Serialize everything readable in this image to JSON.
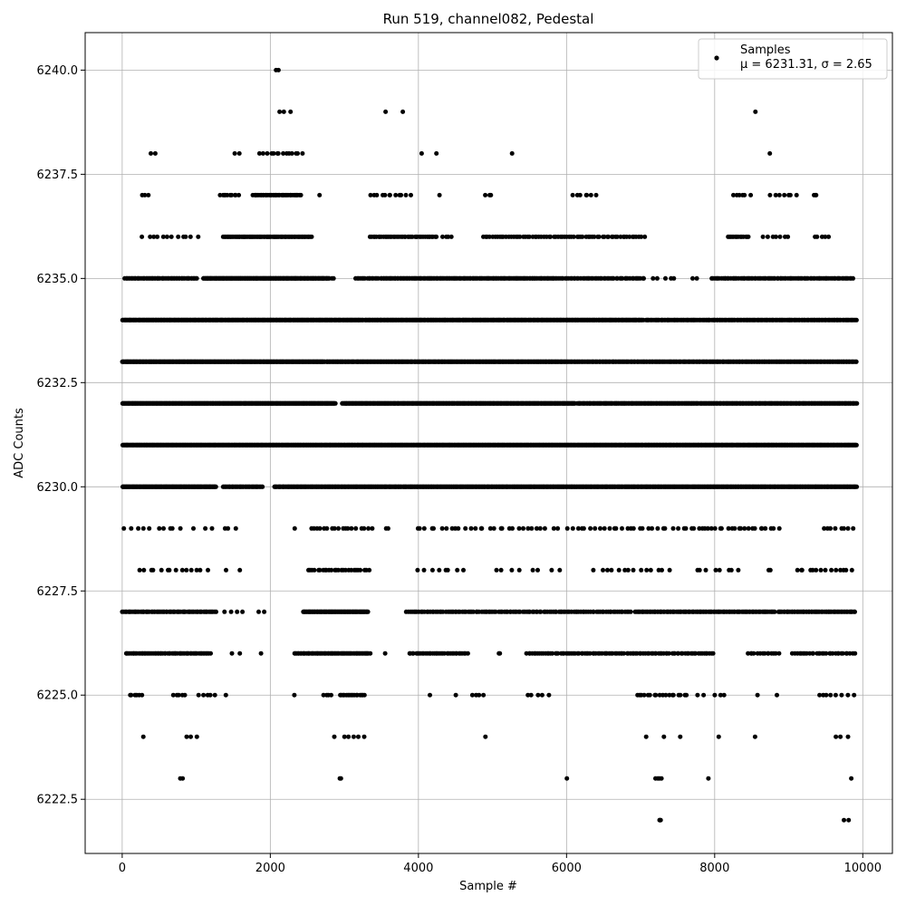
{
  "chart_data": {
    "type": "scatter",
    "title": "Run 519, channel082, Pedestal",
    "xlabel": "Sample #",
    "ylabel": "ADC Counts",
    "xlim": [
      -500,
      10400
    ],
    "ylim": [
      6221.2,
      6240.9
    ],
    "x_ticks": [
      0,
      2000,
      4000,
      6000,
      8000,
      10000
    ],
    "x_tick_labels": [
      "0",
      "2000",
      "4000",
      "6000",
      "8000",
      "10000"
    ],
    "y_ticks": [
      6222.5,
      6225.0,
      6227.5,
      6230.0,
      6232.5,
      6235.0,
      6237.5,
      6240.0
    ],
    "y_tick_labels": [
      "6222.5",
      "6225.0",
      "6227.5",
      "6230.0",
      "6232.5",
      "6235.0",
      "6237.5",
      "6240.0"
    ],
    "grid": true,
    "legend": {
      "placement": "top-right",
      "entries": [
        {
          "name": "Samples",
          "stats": "μ = 6231.31, σ = 2.65"
        }
      ]
    },
    "series": [
      {
        "name": "Samples",
        "color": "#000000",
        "x_range": [
          0,
          9920
        ],
        "count": 9920,
        "sampling_note": "Integer ADC values; density per level approximated from the figure",
        "levels": [
          {
            "y": 6240,
            "segments": [
              [
                2020,
                2180,
                2
              ]
            ]
          },
          {
            "y": 6239,
            "segments": [
              [
                2100,
                2320,
                3
              ],
              [
                3420,
                3790,
                2
              ],
              [
                8540,
                8560,
                1
              ]
            ]
          },
          {
            "y": 6238,
            "segments": [
              [
                380,
                470,
                2
              ],
              [
                1450,
                1660,
                2
              ],
              [
                1850,
                2450,
                14
              ],
              [
                3980,
                4270,
                2
              ],
              [
                5260,
                5270,
                1
              ],
              [
                8740,
                8750,
                1
              ]
            ]
          },
          {
            "y": 6237,
            "segments": [
              [
                270,
                360,
                3
              ],
              [
                1310,
                1580,
                10
              ],
              [
                1760,
                2420,
                40
              ],
              [
                2650,
                2680,
                1
              ],
              [
                3330,
                3900,
                12
              ],
              [
                4280,
                4290,
                1
              ],
              [
                4890,
                5000,
                3
              ],
              [
                6070,
                6420,
                7
              ],
              [
                8210,
                8490,
                6
              ],
              [
                8740,
                9110,
                7
              ],
              [
                9330,
                9390,
                3
              ]
            ]
          },
          {
            "y": 6236,
            "segments": [
              [
                250,
                1040,
                12
              ],
              [
                1360,
                2560,
                80
              ],
              [
                3330,
                4260,
                40
              ],
              [
                4300,
                4480,
                4
              ],
              [
                4860,
                7060,
                70
              ],
              [
                8160,
                8470,
                14
              ],
              [
                8650,
                9000,
                7
              ],
              [
                9340,
                9550,
                5
              ]
            ]
          },
          {
            "y": 6235,
            "segments": [
              [
                30,
                1020,
                60
              ],
              [
                1090,
                2800,
                170
              ],
              [
                2830,
                2860,
                2
              ],
              [
                3140,
                3500,
                16
              ],
              [
                3500,
                5870,
                150
              ],
              [
                5870,
                7060,
                50
              ],
              [
                7160,
                7480,
                5
              ],
              [
                7700,
                7780,
                2
              ],
              [
                7950,
                9880,
                90
              ]
            ]
          },
          {
            "y": 6234,
            "segments": [
              [
                0,
                3260,
                300
              ],
              [
                3270,
                7040,
                320
              ],
              [
                7060,
                9920,
                170
              ]
            ]
          },
          {
            "y": 6233,
            "segments": [
              [
                0,
                2740,
                320
              ],
              [
                2750,
                6000,
                330
              ],
              [
                6000,
                9920,
                300
              ]
            ]
          },
          {
            "y": 6232,
            "segments": [
              [
                0,
                2880,
                360
              ],
              [
                2970,
                6120,
                360
              ],
              [
                6140,
                9920,
                330
              ]
            ]
          },
          {
            "y": 6231,
            "segments": [
              [
                0,
                9920,
                1100
              ]
            ]
          },
          {
            "y": 6230,
            "segments": [
              [
                0,
                1270,
                160
              ],
              [
                1360,
                1900,
                45
              ],
              [
                2050,
                9920,
                800
              ]
            ]
          },
          {
            "y": 6229,
            "segments": [
              [
                20,
                840,
                10
              ],
              [
                930,
                1620,
                6
              ],
              [
                2320,
                2340,
                1
              ],
              [
                2520,
                3380,
                18
              ],
              [
                3540,
                3600,
                2
              ],
              [
                3940,
                5900,
                30
              ],
              [
                5990,
                7440,
                24
              ],
              [
                7500,
                8880,
                28
              ],
              [
                9420,
                9900,
                8
              ]
            ]
          },
          {
            "y": 6228,
            "segments": [
              [
                200,
                1180,
                14
              ],
              [
                1380,
                1600,
                2
              ],
              [
                2490,
                3340,
                26
              ],
              [
                3980,
                4620,
                8
              ],
              [
                4980,
                5920,
                8
              ],
              [
                6360,
                7420,
                14
              ],
              [
                7700,
                8400,
                8
              ],
              [
                8700,
                8780,
                2
              ],
              [
                9060,
                9890,
                14
              ]
            ]
          },
          {
            "y": 6227,
            "segments": [
              [
                0,
                1270,
                70
              ],
              [
                1370,
                1700,
                4
              ],
              [
                1830,
                1960,
                2
              ],
              [
                2440,
                3320,
                90
              ],
              [
                3820,
                6870,
                120
              ],
              [
                6920,
                8820,
                110
              ],
              [
                8850,
                9910,
                60
              ]
            ]
          },
          {
            "y": 6226,
            "segments": [
              [
                40,
                1200,
                60
              ],
              [
                1480,
                1590,
                2
              ],
              [
                1870,
                1880,
                1
              ],
              [
                2320,
                3350,
                65
              ],
              [
                3540,
                3560,
                1
              ],
              [
                3860,
                4670,
                35
              ],
              [
                5070,
                5120,
                2
              ],
              [
                5450,
                7990,
                100
              ],
              [
                8430,
                8880,
                14
              ],
              [
                9040,
                9900,
                30
              ]
            ]
          },
          {
            "y": 6225,
            "segments": [
              [
                90,
                270,
                6
              ],
              [
                680,
                860,
                5
              ],
              [
                1020,
                1280,
                5
              ],
              [
                1390,
                1410,
                1
              ],
              [
                2320,
                2330,
                1
              ],
              [
                2700,
                2830,
                4
              ],
              [
                2930,
                3280,
                16
              ],
              [
                4150,
                4160,
                1
              ],
              [
                4500,
                4510,
                1
              ],
              [
                4710,
                4880,
                4
              ],
              [
                5450,
                5780,
                5
              ],
              [
                6920,
                7640,
                18
              ],
              [
                7760,
                8170,
                5
              ],
              [
                8530,
                8870,
                2
              ],
              [
                9360,
                9890,
                8
              ]
            ]
          },
          {
            "y": 6224,
            "segments": [
              [
                280,
                290,
                1
              ],
              [
                850,
                1050,
                3
              ],
              [
                2840,
                3330,
                6
              ],
              [
                4900,
                4910,
                1
              ],
              [
                7070,
                7080,
                1
              ],
              [
                7310,
                7320,
                1
              ],
              [
                7530,
                7540,
                1
              ],
              [
                8050,
                8060,
                1
              ],
              [
                8540,
                8550,
                1
              ],
              [
                9550,
                9860,
                3
              ]
            ]
          },
          {
            "y": 6223,
            "segments": [
              [
                730,
                850,
                2
              ],
              [
                2930,
                2970,
                2
              ],
              [
                6000,
                6010,
                1
              ],
              [
                7190,
                7290,
                4
              ],
              [
                7910,
                7920,
                1
              ],
              [
                9840,
                9850,
                1
              ]
            ]
          },
          {
            "y": 6222,
            "segments": [
              [
                7250,
                7280,
                3
              ],
              [
                9740,
                9860,
                2
              ]
            ]
          }
        ]
      }
    ]
  }
}
